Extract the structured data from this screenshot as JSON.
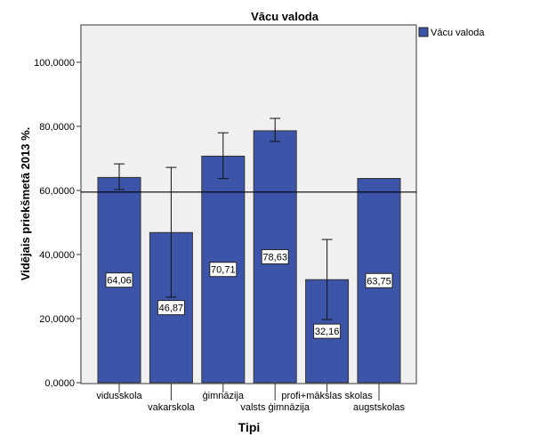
{
  "chart_data": {
    "type": "bar",
    "title": "Vācu valoda",
    "xlabel": "Tipi",
    "ylabel": "Vidējais priekšmetā 2013 %.",
    "ylim": [
      0,
      100
    ],
    "yticks": [
      0,
      20,
      40,
      60,
      80,
      100
    ],
    "ytick_labels": [
      "0,0000",
      "20,0000",
      "40,0000",
      "60,0000",
      "80,0000",
      "100,0000"
    ],
    "categories": [
      "vidusskola",
      "vakarskola",
      "ģimnāzija",
      "valsts ģimnāzija",
      "profi+mākslas skolas",
      "augstskolas"
    ],
    "series": [
      {
        "name": "Vācu valoda",
        "values": [
          64.06,
          46.87,
          70.71,
          78.63,
          32.16,
          63.75
        ],
        "value_labels": [
          "64,06",
          "46,87",
          "70,71",
          "78,63",
          "32,16",
          "63,75"
        ],
        "error_low": [
          60.3,
          26.7,
          63.7,
          75.3,
          19.7,
          null
        ],
        "error_high": [
          68.3,
          67.2,
          78.0,
          82.5,
          44.7,
          null
        ]
      }
    ],
    "reference_line": 59.5,
    "legend": {
      "label": "Vācu valoda",
      "placement": "top-right"
    },
    "colors": {
      "bar": "#3d55a9",
      "plot_bg": "#f0f0f0",
      "frame": "#777777"
    },
    "grid": false
  }
}
